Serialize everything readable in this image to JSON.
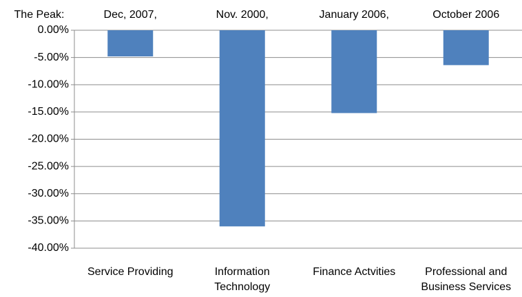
{
  "chart_data": {
    "type": "bar",
    "peak_label": "The Peak:",
    "peaks": [
      "Dec, 2007,",
      "Nov. 2000,",
      "January 2006,",
      "October 2006"
    ],
    "categories": [
      "Service Providing",
      "Information Technology",
      "Finance Actvities",
      "Professional and Business Services"
    ],
    "values": [
      -4.8,
      -36,
      -15.2,
      -6.4
    ],
    "color": "#4f81bd",
    "ylim": [
      -40,
      0
    ],
    "yticks": [
      {
        "value": 0,
        "label": "0.00%"
      },
      {
        "value": -5,
        "label": "-5.00%"
      },
      {
        "value": -10,
        "label": "-10.00%"
      },
      {
        "value": -15,
        "label": "-15.00%"
      },
      {
        "value": -20,
        "label": "-20.00%"
      },
      {
        "value": -25,
        "label": "-25.00%"
      },
      {
        "value": -30,
        "label": "-30.00%"
      },
      {
        "value": -35,
        "label": "-35.00%"
      },
      {
        "value": -40,
        "label": "-40.00%"
      }
    ],
    "grid": true
  }
}
